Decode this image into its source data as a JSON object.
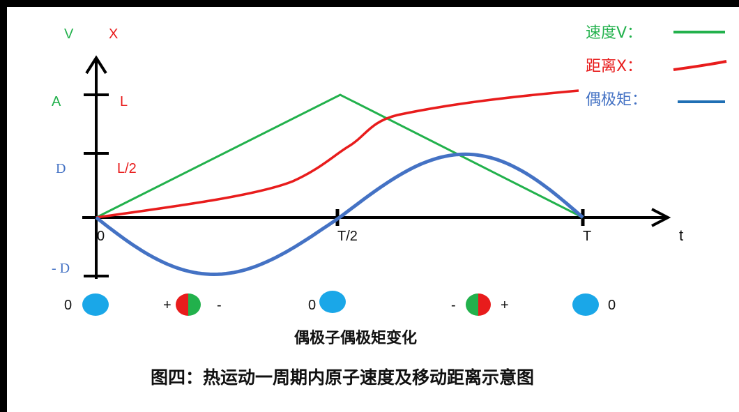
{
  "axis": {
    "v_label": "V",
    "x_label": "X",
    "t_label": "t"
  },
  "y_ticks": {
    "A": "A",
    "L": "L",
    "L_half": "L/2",
    "D": "D",
    "minus_D": "- D"
  },
  "x_ticks": {
    "zero": "0",
    "half": "T/2",
    "T": "T"
  },
  "legend": {
    "speed": "速度V：",
    "distance": "距离X：",
    "dipole": "偶极矩："
  },
  "colors": {
    "speed": "#22b14c",
    "distance": "#e81c1c",
    "dipole": "#4472c4",
    "atom": "#1aa7e8"
  },
  "dipole_states": [
    {
      "label": "0"
    },
    {
      "plus": "+",
      "minus": "-"
    },
    {
      "label": "0"
    },
    {
      "minus": "-",
      "plus": "+"
    },
    {
      "label": "0"
    }
  ],
  "dipole_caption": "偶极子偶极矩变化",
  "figure_caption": "图四：热运动一周期内原子速度及移动距离示意图"
}
